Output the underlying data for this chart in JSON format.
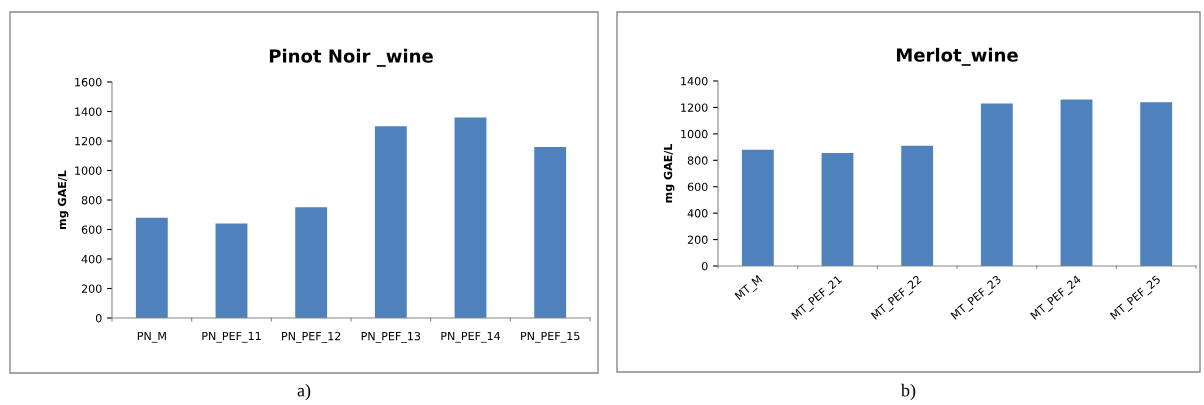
{
  "chart_data": [
    {
      "type": "bar",
      "title": "Pinot Noir _wine",
      "ylabel": "mg GAE/L",
      "categories": [
        "PN_M",
        "PN_PEF_11",
        "PN_PEF_12",
        "PN_PEF_13",
        "PN_PEF_14",
        "PN_PEF_15"
      ],
      "values": [
        680,
        640,
        750,
        1300,
        1360,
        1160
      ],
      "color": "#4f81bd",
      "ylim": [
        0,
        1600
      ],
      "yticks": [
        0,
        200,
        400,
        600,
        800,
        1000,
        1200,
        1400,
        1600
      ],
      "grid": false,
      "annotations": [
        "a)"
      ]
    },
    {
      "type": "bar",
      "title": "Merlot_wine",
      "ylabel": "mg GAE/L",
      "categories": [
        "MT_M",
        "MT_PEF_21",
        "MT_PEF_22",
        "MT_PEF_23",
        "MT_PEF_24",
        "MT_PEF_25"
      ],
      "values": [
        880,
        855,
        910,
        1230,
        1260,
        1240
      ],
      "color": "#4f81bd",
      "ylim": [
        0,
        1400
      ],
      "yticks": [
        0,
        200,
        400,
        600,
        800,
        1000,
        1200,
        1400
      ],
      "grid": false,
      "annotations": [
        "b)"
      ]
    }
  ]
}
